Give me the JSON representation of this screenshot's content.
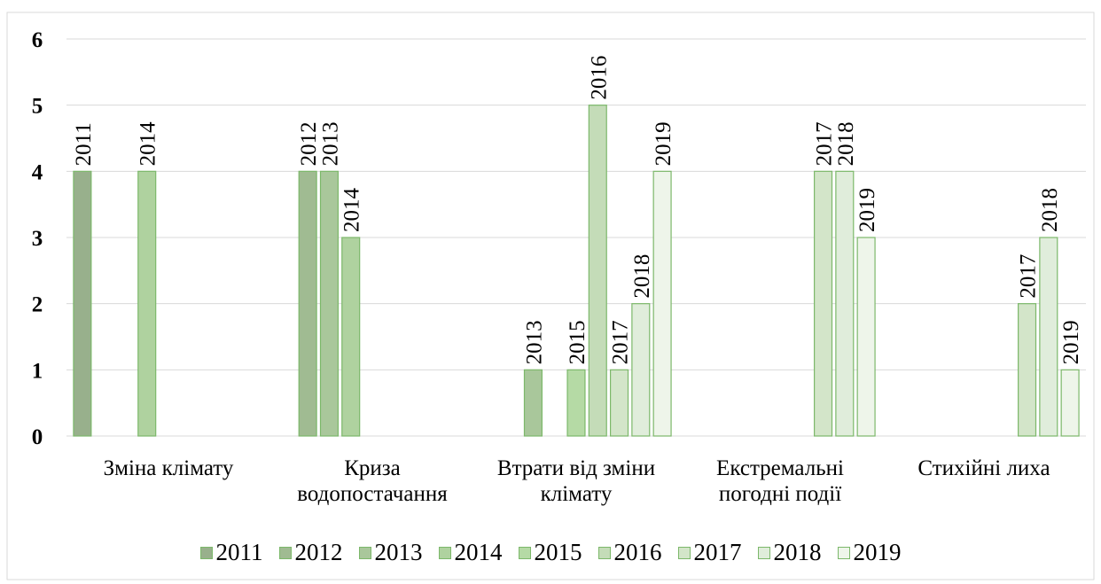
{
  "chart_data": {
    "type": "bar",
    "categories": [
      "Зміна клімату",
      "Криза водопостачання",
      "Втрати від зміни клімату",
      "Екстремальні погодні події",
      "Стихійні лиха"
    ],
    "series": [
      {
        "name": "2011",
        "color": "#98b08c",
        "values": [
          4,
          0,
          0,
          0,
          0
        ]
      },
      {
        "name": "2012",
        "color": "#a0bb92",
        "values": [
          0,
          4,
          0,
          0,
          0
        ]
      },
      {
        "name": "2013",
        "color": "#a9c79b",
        "values": [
          0,
          4,
          1,
          0,
          0
        ]
      },
      {
        "name": "2014",
        "color": "#afd29f",
        "values": [
          4,
          3,
          0,
          0,
          0
        ]
      },
      {
        "name": "2015",
        "color": "#b5daa5",
        "values": [
          0,
          0,
          1,
          0,
          0
        ]
      },
      {
        "name": "2016",
        "color": "#c4dcb8",
        "values": [
          0,
          0,
          5,
          0,
          0
        ]
      },
      {
        "name": "2017",
        "color": "#d3e5c9",
        "values": [
          0,
          0,
          1,
          4,
          2
        ]
      },
      {
        "name": "2018",
        "color": "#e0eddb",
        "values": [
          0,
          0,
          2,
          4,
          3
        ]
      },
      {
        "name": "2019",
        "color": "#eef5ea",
        "values": [
          0,
          0,
          4,
          3,
          1
        ]
      }
    ],
    "ylim": [
      0,
      6
    ],
    "yticks": [
      0,
      1,
      2,
      3,
      4,
      5,
      6
    ],
    "grid": true,
    "legend": "bottom"
  }
}
